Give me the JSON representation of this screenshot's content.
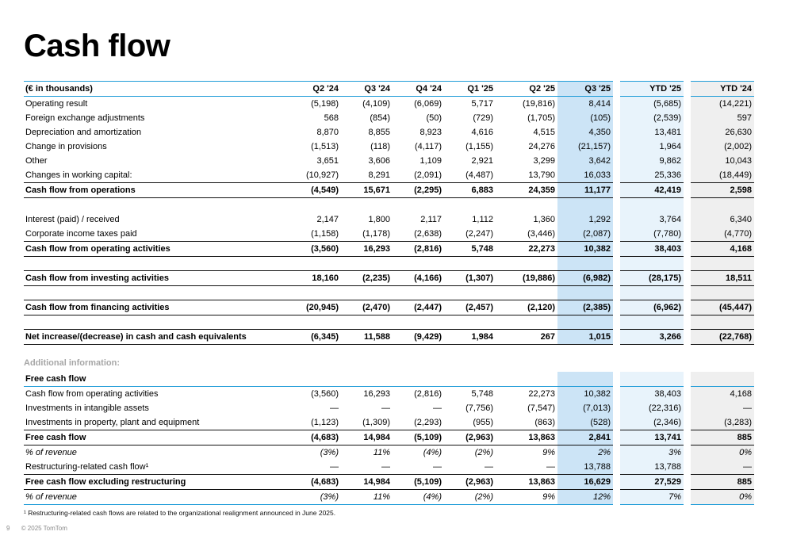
{
  "slide": {
    "title": "Cash flow",
    "additional_info_label": "Additional information:",
    "footnote": "¹ Restructuring-related cash flows are related to the organizational realignment announced in June 2025.",
    "page_number": "9",
    "copyright": "© 2025 TomTom"
  },
  "colors": {
    "accent_blue": "#1f9cd8",
    "q3_highlight": "#cce4f6",
    "ytd25_highlight": "#e8f3fb",
    "ytd24_highlight": "#efefef"
  },
  "table_data": {
    "unit_label": "(€ in thousands)",
    "columns": [
      "Q2 '24",
      "Q3 '24",
      "Q4 '24",
      "Q1 '25",
      "Q2 '25",
      "Q3 '25",
      "YTD '25",
      "YTD '24"
    ],
    "main_rows": [
      {
        "label": "Operating result",
        "style": "",
        "values": [
          "(5,198)",
          "(4,109)",
          "(6,069)",
          "5,717",
          "(19,816)",
          "8,414",
          "(5,685)",
          "(14,221)"
        ]
      },
      {
        "label": "Foreign exchange adjustments",
        "style": "",
        "values": [
          "568",
          "(854)",
          "(50)",
          "(729)",
          "(1,705)",
          "(105)",
          "(2,539)",
          "597"
        ]
      },
      {
        "label": "Depreciation and amortization",
        "style": "",
        "values": [
          "8,870",
          "8,855",
          "8,923",
          "4,616",
          "4,515",
          "4,350",
          "13,481",
          "26,630"
        ]
      },
      {
        "label": "Change in provisions",
        "style": "",
        "values": [
          "(1,513)",
          "(118)",
          "(4,117)",
          "(1,155)",
          "24,276",
          "(21,157)",
          "1,964",
          "(2,002)"
        ]
      },
      {
        "label": "Other",
        "style": "",
        "values": [
          "3,651",
          "3,606",
          "1,109",
          "2,921",
          "3,299",
          "3,642",
          "9,862",
          "10,043"
        ]
      },
      {
        "label": "Changes in working capital:",
        "style": "",
        "values": [
          "(10,927)",
          "8,291",
          "(2,091)",
          "(4,487)",
          "13,790",
          "16,033",
          "25,336",
          "(18,449)"
        ]
      },
      {
        "label": "Cash flow from operations",
        "style": "total",
        "values": [
          "(4,549)",
          "15,671",
          "(2,295)",
          "6,883",
          "24,359",
          "11,177",
          "42,419",
          "2,598"
        ]
      },
      {
        "label": "",
        "style": "spacer",
        "values": [
          "",
          "",
          "",
          "",
          "",
          "",
          "",
          ""
        ]
      },
      {
        "label": "Interest (paid) / received",
        "style": "",
        "values": [
          "2,147",
          "1,800",
          "2,117",
          "1,112",
          "1,360",
          "1,292",
          "3,764",
          "6,340"
        ]
      },
      {
        "label": "Corporate income taxes paid",
        "style": "",
        "values": [
          "(1,158)",
          "(1,178)",
          "(2,638)",
          "(2,247)",
          "(3,446)",
          "(2,087)",
          "(7,780)",
          "(4,770)"
        ]
      },
      {
        "label": "Cash flow from operating activities",
        "style": "total",
        "values": [
          "(3,560)",
          "16,293",
          "(2,816)",
          "5,748",
          "22,273",
          "10,382",
          "38,403",
          "4,168"
        ]
      },
      {
        "label": "",
        "style": "spacer",
        "values": [
          "",
          "",
          "",
          "",
          "",
          "",
          "",
          ""
        ]
      },
      {
        "label": "Cash flow from investing activities",
        "style": "total",
        "values": [
          "18,160",
          "(2,235)",
          "(4,166)",
          "(1,307)",
          "(19,886)",
          "(6,982)",
          "(28,175)",
          "18,511"
        ]
      },
      {
        "label": "",
        "style": "spacer",
        "values": [
          "",
          "",
          "",
          "",
          "",
          "",
          "",
          ""
        ]
      },
      {
        "label": "Cash flow from financing activities",
        "style": "total",
        "values": [
          "(20,945)",
          "(2,470)",
          "(2,447)",
          "(2,457)",
          "(2,120)",
          "(2,385)",
          "(6,962)",
          "(45,447)"
        ]
      },
      {
        "label": "",
        "style": "spacer",
        "values": [
          "",
          "",
          "",
          "",
          "",
          "",
          "",
          ""
        ]
      },
      {
        "label": "Net increase/(decrease) in cash and cash equivalents",
        "style": "total",
        "values": [
          "(6,345)",
          "11,588",
          "(9,429)",
          "1,984",
          "267",
          "1,015",
          "3,266",
          "(22,768)"
        ]
      }
    ],
    "fcf_rows": [
      {
        "label": "Free cash flow",
        "style": "section-head",
        "values": [
          "",
          "",
          "",
          "",
          "",
          "",
          "",
          ""
        ]
      },
      {
        "label": "Cash flow from operating activities",
        "style": "",
        "values": [
          "(3,560)",
          "16,293",
          "(2,816)",
          "5,748",
          "22,273",
          "10,382",
          "38,403",
          "4,168"
        ]
      },
      {
        "label": "Investments in intangible assets",
        "style": "",
        "values": [
          "—",
          "—",
          "—",
          "(7,756)",
          "(7,547)",
          "(7,013)",
          "(22,316)",
          "—"
        ]
      },
      {
        "label": "Investments in property, plant and equipment",
        "style": "",
        "values": [
          "(1,123)",
          "(1,309)",
          "(2,293)",
          "(955)",
          "(863)",
          "(528)",
          "(2,346)",
          "(3,283)"
        ]
      },
      {
        "label": "Free cash flow",
        "style": "total",
        "values": [
          "(4,683)",
          "14,984",
          "(5,109)",
          "(2,963)",
          "13,863",
          "2,841",
          "13,741",
          "885"
        ]
      },
      {
        "label": "% of revenue",
        "style": "pct",
        "values": [
          "(3%)",
          "11%",
          "(4%)",
          "(2%)",
          "9%",
          "2%",
          "3%",
          "0%"
        ]
      },
      {
        "label": "Restructuring-related cash flow¹",
        "style": "",
        "values": [
          "—",
          "—",
          "—",
          "—",
          "—",
          "13,788",
          "13,788",
          "—"
        ]
      },
      {
        "label": "Free cash flow excluding restructuring",
        "style": "total",
        "values": [
          "(4,683)",
          "14,984",
          "(5,109)",
          "(2,963)",
          "13,863",
          "16,629",
          "27,529",
          "885"
        ]
      },
      {
        "label": "% of revenue",
        "style": "pct bottom-rule",
        "values": [
          "(3%)",
          "11%",
          "(4%)",
          "(2%)",
          "9%",
          "12%",
          "7%",
          "0%"
        ]
      }
    ]
  }
}
